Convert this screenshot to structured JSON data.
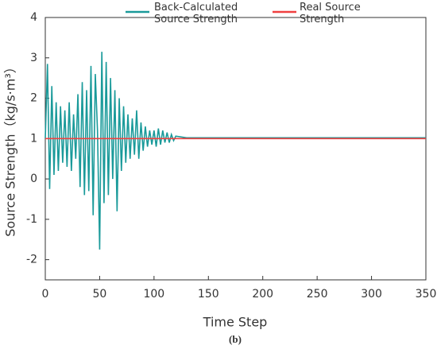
{
  "chart_data": {
    "type": "line",
    "xlabel": "Time Step",
    "ylabel": "Source Strength（kg/s·m³）",
    "caption": "(b)",
    "xlim": [
      0,
      350
    ],
    "xticks": [
      0,
      50,
      100,
      150,
      200,
      250,
      300,
      350
    ],
    "ylim": [
      -2.5,
      4
    ],
    "yticks": [
      -2,
      -1,
      0,
      1,
      2,
      3,
      4
    ],
    "series": [
      {
        "name": "Back-Calculated Source Strength",
        "color": "#1a9a9a",
        "x": [
          0,
          2,
          4,
          6,
          8,
          10,
          12,
          14,
          16,
          18,
          20,
          22,
          24,
          26,
          28,
          30,
          32,
          34,
          36,
          38,
          40,
          42,
          44,
          46,
          48,
          50,
          52,
          54,
          56,
          58,
          60,
          62,
          64,
          66,
          68,
          70,
          72,
          74,
          76,
          78,
          80,
          82,
          84,
          86,
          88,
          90,
          92,
          94,
          96,
          98,
          100,
          102,
          104,
          106,
          108,
          110,
          112,
          114,
          116,
          118,
          120,
          130,
          140,
          150,
          160,
          170,
          180,
          190,
          200,
          210,
          220,
          230,
          240,
          250,
          260,
          270,
          280,
          290,
          300,
          310,
          320,
          330,
          340,
          350
        ],
        "values": [
          1.0,
          2.85,
          -0.25,
          2.3,
          0.1,
          1.9,
          0.2,
          1.8,
          0.4,
          1.7,
          0.3,
          1.9,
          0.2,
          1.6,
          0.5,
          2.1,
          -0.2,
          2.4,
          -0.4,
          2.2,
          -0.3,
          2.8,
          -0.9,
          2.6,
          1.2,
          -1.75,
          3.15,
          -0.6,
          2.9,
          -0.4,
          2.5,
          0.0,
          2.2,
          -0.8,
          2.0,
          0.2,
          1.8,
          0.4,
          1.6,
          0.5,
          1.5,
          0.6,
          1.7,
          0.5,
          1.4,
          0.7,
          1.3,
          0.8,
          1.2,
          0.85,
          1.2,
          0.8,
          1.25,
          0.85,
          1.2,
          0.9,
          1.15,
          0.9,
          1.1,
          0.95,
          1.06,
          1.02,
          1.02,
          1.02,
          1.02,
          1.02,
          1.02,
          1.02,
          1.02,
          1.02,
          1.02,
          1.02,
          1.02,
          1.02,
          1.02,
          1.02,
          1.02,
          1.02,
          1.02,
          1.02,
          1.02,
          1.02,
          1.02,
          1.02
        ]
      },
      {
        "name": "Real Source Strength",
        "color": "#f04040",
        "x": [
          0,
          350
        ],
        "values": [
          1,
          1
        ]
      }
    ]
  }
}
